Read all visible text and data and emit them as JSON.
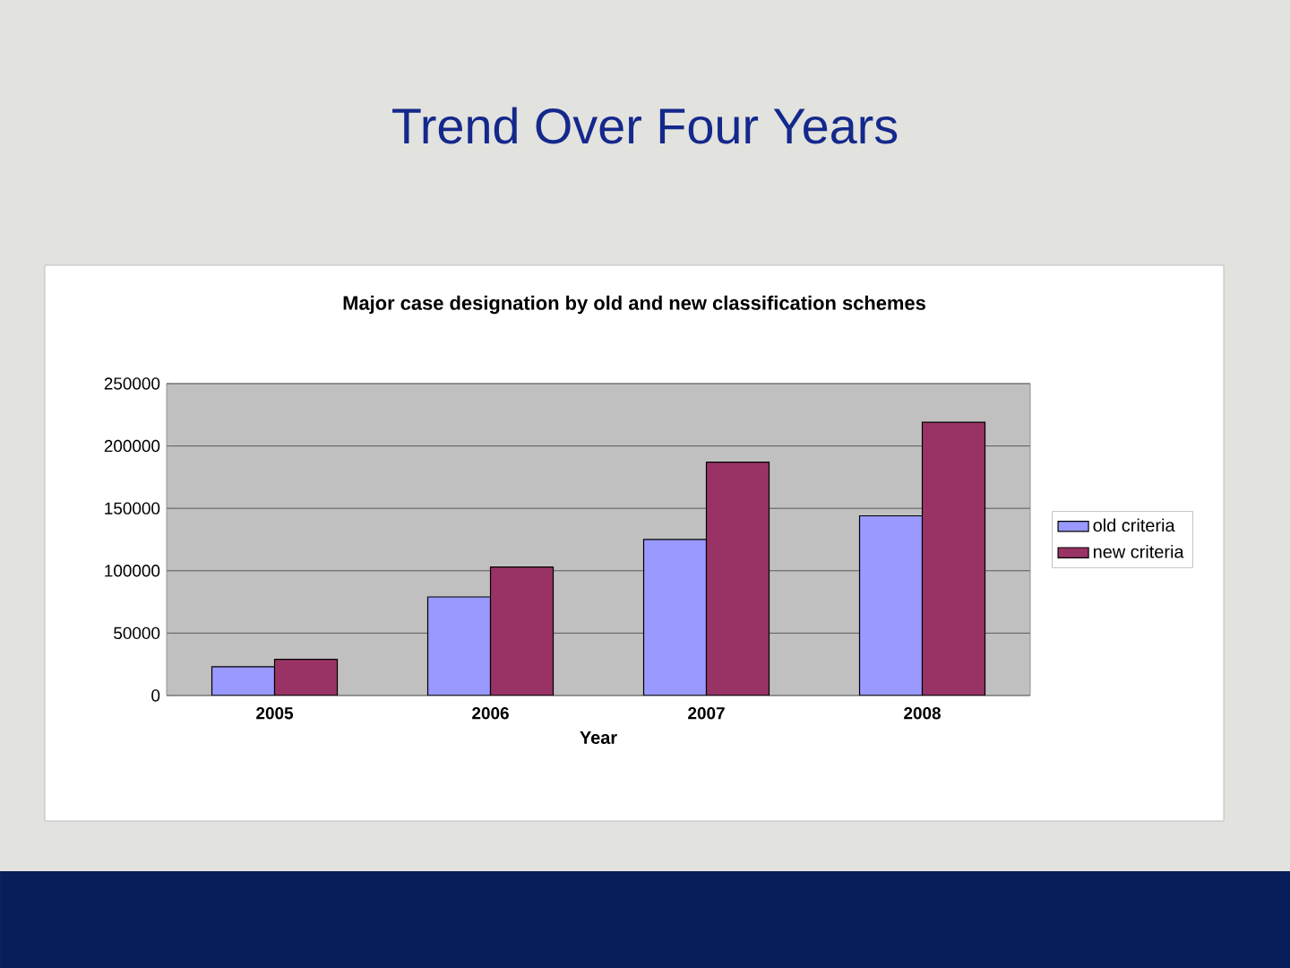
{
  "chart_data": {
    "type": "bar",
    "title": "Trend Over Four Years",
    "subtitle": "Major case designation by old and new classification schemes",
    "xlabel": "Year",
    "categories": [
      "2005",
      "2006",
      "2007",
      "2008"
    ],
    "series": [
      {
        "name": "old criteria",
        "color": "#9999ff",
        "values": [
          23000,
          79000,
          125000,
          144000
        ]
      },
      {
        "name": "new criteria",
        "color": "#993366",
        "values": [
          29000,
          103000,
          187000,
          219000
        ]
      }
    ],
    "ylim": [
      0,
      250000
    ],
    "yticks": [
      0,
      50000,
      100000,
      150000,
      200000,
      250000
    ],
    "grid": "y",
    "legend": "right"
  }
}
